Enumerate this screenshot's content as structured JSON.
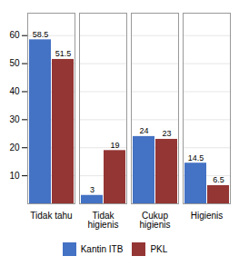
{
  "chart_data": {
    "type": "bar",
    "categories": [
      "Tidak tahu",
      "Tidak\nhigienis",
      "Cukup\nhigienis",
      "Higienis"
    ],
    "series": [
      {
        "name": "Kantin ITB",
        "color": "#4472C4",
        "values": [
          58.5,
          3,
          24,
          14.5
        ]
      },
      {
        "name": "PKL",
        "color": "#943634",
        "values": [
          51.5,
          19,
          23,
          6.5
        ]
      }
    ],
    "ylim": [
      0,
      68
    ],
    "yticks": [
      10,
      20,
      30,
      40,
      50,
      60
    ],
    "grid": true,
    "data_labels": true,
    "legend": "bottom"
  }
}
